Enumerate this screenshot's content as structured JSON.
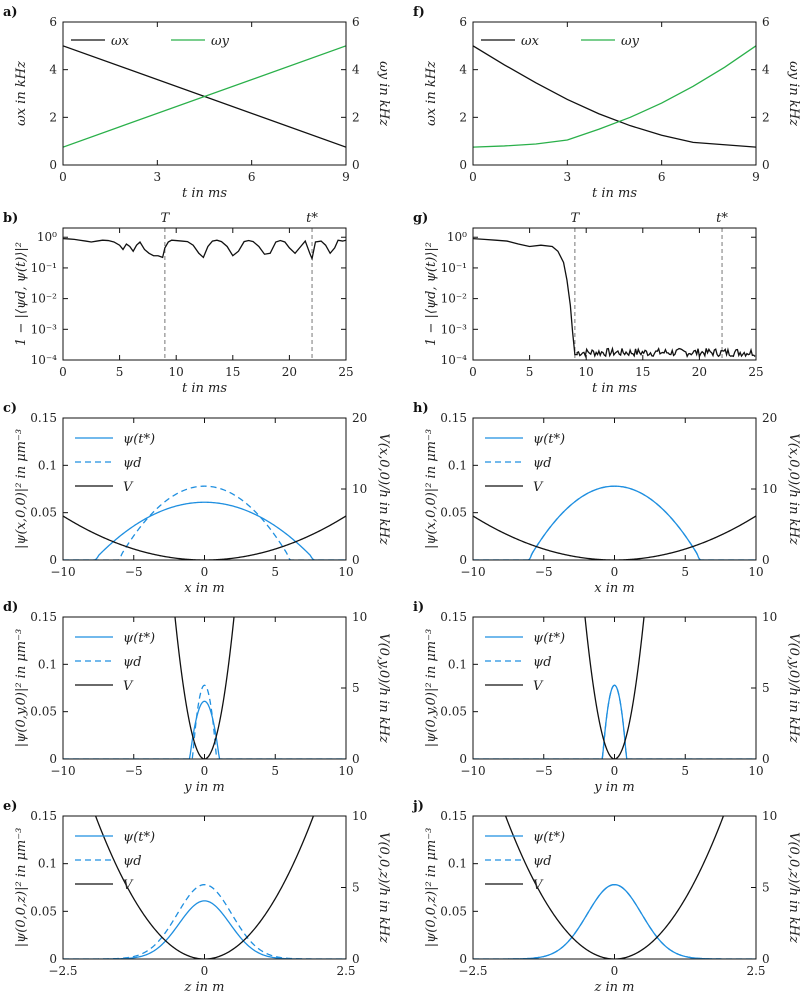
{
  "colors": {
    "black": "#111111",
    "green": "#2ab04a",
    "blue": "#1f8fe0",
    "gray": "#777777"
  },
  "chart_data": [
    {
      "panel": "a)",
      "type": "line",
      "xlabel": "t in ms",
      "ylabel": "ωx in kHz",
      "y2label": "ωy in kHz",
      "xlim": [
        0,
        9
      ],
      "ylim": [
        0,
        6
      ],
      "y2lim": [
        0,
        6
      ],
      "xticks": [
        "0",
        "3",
        "6",
        "9"
      ],
      "yticks": [
        "0",
        "2",
        "4",
        "6"
      ],
      "y2ticks": [
        "0",
        "2",
        "4",
        "6"
      ],
      "legend_position": "top",
      "series": [
        {
          "name": "ωx",
          "color": "black",
          "x": [
            0,
            9
          ],
          "y": [
            5,
            0.75
          ]
        },
        {
          "name": "ωy",
          "color": "green",
          "x": [
            0,
            9
          ],
          "y": [
            0.75,
            5
          ]
        }
      ]
    },
    {
      "panel": "f)",
      "type": "line",
      "xlabel": "t in ms",
      "ylabel": "ωx in kHz",
      "y2label": "ωy in kHz",
      "xlim": [
        0,
        9
      ],
      "ylim": [
        0,
        6
      ],
      "y2lim": [
        0,
        6
      ],
      "xticks": [
        "0",
        "3",
        "6",
        "9"
      ],
      "yticks": [
        "0",
        "2",
        "4",
        "6"
      ],
      "y2ticks": [
        "0",
        "2",
        "4",
        "6"
      ],
      "legend_position": "top",
      "series": [
        {
          "name": "ωx",
          "color": "black",
          "x": [
            0,
            1,
            2,
            3,
            4,
            5,
            6,
            7,
            8,
            9
          ],
          "y": [
            5,
            4.2,
            3.45,
            2.75,
            2.15,
            1.65,
            1.25,
            0.95,
            0.85,
            0.75
          ]
        },
        {
          "name": "ωy",
          "color": "green",
          "x": [
            0,
            1,
            2,
            3,
            4,
            5,
            6,
            7,
            8,
            9
          ],
          "y": [
            0.75,
            0.8,
            0.88,
            1.05,
            1.5,
            2,
            2.6,
            3.3,
            4.1,
            5
          ]
        }
      ]
    },
    {
      "panel": "b)",
      "type": "line",
      "scale": "log",
      "xlabel": "t in ms",
      "ylabel": "1 − |⟨ψd, ψ(t)⟩|²",
      "xlim": [
        0,
        25
      ],
      "ylim": [
        0.0001,
        2
      ],
      "xticks": [
        "0",
        "5",
        "10",
        "15",
        "20",
        "25"
      ],
      "yticks": [
        "10⁻⁴",
        "10⁻³",
        "10⁻²",
        "10⁻¹",
        "10⁰"
      ],
      "markers": [
        {
          "label": "T",
          "x": 9
        },
        {
          "label": "t*",
          "x": 22
        }
      ],
      "series": [
        {
          "name": "",
          "color": "black",
          "x": [
            0,
            0.5,
            1,
            1.5,
            2,
            2.5,
            3,
            3.5,
            4,
            4.5,
            5,
            5.3,
            5.6,
            5.9,
            6.2,
            6.5,
            6.8,
            7.2,
            7.6,
            8,
            8.4,
            8.8,
            9,
            9.3,
            9.6,
            10,
            10.5,
            11,
            11.5,
            12,
            12.4,
            12.8,
            13.2,
            13.6,
            14,
            14.5,
            15,
            15.5,
            16,
            16.4,
            16.8,
            17.3,
            17.8,
            18.3,
            18.8,
            19.2,
            19.6,
            20,
            20.5,
            21,
            21.4,
            21.8,
            22,
            22.3,
            22.8,
            23.2,
            23.6,
            24,
            24.3,
            24.7,
            25
          ],
          "y": [
            0.9,
            0.88,
            0.85,
            0.8,
            0.75,
            0.7,
            0.75,
            0.8,
            0.78,
            0.7,
            0.55,
            0.4,
            0.6,
            0.5,
            0.35,
            0.55,
            0.7,
            0.4,
            0.3,
            0.25,
            0.25,
            0.22,
            0.45,
            0.7,
            0.8,
            0.78,
            0.75,
            0.72,
            0.55,
            0.3,
            0.22,
            0.5,
            0.75,
            0.8,
            0.72,
            0.5,
            0.25,
            0.35,
            0.72,
            0.78,
            0.72,
            0.5,
            0.28,
            0.3,
            0.7,
            0.78,
            0.7,
            0.45,
            0.3,
            0.5,
            0.75,
            0.3,
            0.2,
            0.7,
            0.75,
            0.55,
            0.3,
            0.45,
            0.8,
            0.75,
            0.8
          ]
        }
      ]
    },
    {
      "panel": "g)",
      "type": "line",
      "scale": "log",
      "xlabel": "t in ms",
      "ylabel": "1 − |⟨ψd, ψ(t)⟩|²",
      "xlim": [
        0,
        25
      ],
      "ylim": [
        0.0001,
        2
      ],
      "xticks": [
        "0",
        "5",
        "10",
        "15",
        "20",
        "25"
      ],
      "yticks": [
        "10⁻⁴",
        "10⁻³",
        "10⁻²",
        "10⁻¹",
        "10⁰"
      ],
      "markers": [
        {
          "label": "T",
          "x": 9
        },
        {
          "label": "t*",
          "x": 22
        }
      ],
      "series": [
        {
          "name": "",
          "color": "black",
          "x": [
            0,
            1,
            2,
            3,
            4,
            5,
            6,
            7,
            7.5,
            8,
            8.3,
            8.6,
            8.8,
            9,
            9.2
          ],
          "y": [
            0.9,
            0.85,
            0.8,
            0.75,
            0.6,
            0.5,
            0.55,
            0.5,
            0.35,
            0.15,
            0.04,
            0.006,
            0.0008,
            0.00015,
            0.00015
          ],
          "noise_after_x": 9.2,
          "noise_min": 0.00013,
          "noise_max": 0.00024
        }
      ]
    },
    {
      "panel": "c)",
      "type": "line",
      "xlabel": "x in m",
      "ylabel": "|ψ(x,0,0)|² in μm⁻³",
      "y2label": "V(x,0,0)/h in kHz",
      "xlim": [
        -10,
        10
      ],
      "ylim": [
        0,
        0.15
      ],
      "y2lim": [
        0,
        20
      ],
      "xticks": [
        "−10",
        "−5",
        "0",
        "5",
        "10"
      ],
      "yticks": [
        "0",
        "0.05",
        "0.1",
        "0.15"
      ],
      "y2ticks": [
        "0",
        "10",
        "20"
      ],
      "series": [
        {
          "name": "ψ(t*)",
          "color": "blue",
          "style": "solid",
          "model": "tf",
          "center": 0,
          "radius": 7.8,
          "peak": 0.061,
          "ramp": 0.08
        },
        {
          "name": "ψd",
          "color": "blue",
          "style": "dashed",
          "model": "tf",
          "center": 0,
          "radius": 6.1,
          "peak": 0.078,
          "ramp": 0.08
        },
        {
          "name": "V",
          "color": "black",
          "style": "solid",
          "axis": "right",
          "model": "parabola",
          "k": 0.062
        }
      ]
    },
    {
      "panel": "h)",
      "type": "line",
      "xlabel": "x in m",
      "ylabel": "|ψ(x,0,0)|² in μm⁻³",
      "y2label": "V(x,0,0)/h in kHz",
      "xlim": [
        -10,
        10
      ],
      "ylim": [
        0,
        0.15
      ],
      "y2lim": [
        0,
        20
      ],
      "xticks": [
        "−10",
        "−5",
        "0",
        "5",
        "10"
      ],
      "yticks": [
        "0",
        "0.05",
        "0.1",
        "0.15"
      ],
      "y2ticks": [
        "0",
        "10",
        "20"
      ],
      "series": [
        {
          "name": "ψ(t*)",
          "color": "blue",
          "style": "solid",
          "model": "tf",
          "center": 0,
          "radius": 6.1,
          "peak": 0.078,
          "ramp": 0.08
        },
        {
          "name": "ψd",
          "color": "blue",
          "style": "dashed",
          "model": "tf",
          "center": 0,
          "radius": 6.1,
          "peak": 0.078,
          "ramp": 0.08
        },
        {
          "name": "V",
          "color": "black",
          "style": "solid",
          "axis": "right",
          "model": "parabola",
          "k": 0.062
        }
      ]
    },
    {
      "panel": "d)",
      "type": "line",
      "xlabel": "y in m",
      "ylabel": "|ψ(0,y,0)|² in μm⁻³",
      "y2label": "V(0,y,0)/h in kHz",
      "xlim": [
        -10,
        10
      ],
      "ylim": [
        0,
        0.15
      ],
      "y2lim": [
        0,
        10
      ],
      "xticks": [
        "−10",
        "−5",
        "0",
        "5",
        "10"
      ],
      "yticks": [
        "0",
        "0.05",
        "0.1",
        "0.15"
      ],
      "y2ticks": [
        "0",
        "5",
        "10"
      ],
      "series": [
        {
          "name": "ψ(t*)",
          "color": "blue",
          "style": "solid",
          "model": "tf",
          "center": 0,
          "radius": 1.05,
          "peak": 0.061,
          "ramp": 0.08
        },
        {
          "name": "ψd",
          "color": "blue",
          "style": "dashed",
          "model": "tf",
          "center": 0,
          "radius": 0.85,
          "peak": 0.078,
          "ramp": 0.08
        },
        {
          "name": "V",
          "color": "black",
          "style": "solid",
          "axis": "right",
          "model": "parabola",
          "k": 2.3
        }
      ]
    },
    {
      "panel": "i)",
      "type": "line",
      "xlabel": "y in m",
      "ylabel": "|ψ(0,y,0)|² in μm⁻³",
      "y2label": "V(0,y,0)/h in kHz",
      "xlim": [
        -10,
        10
      ],
      "ylim": [
        0,
        0.15
      ],
      "y2lim": [
        0,
        10
      ],
      "xticks": [
        "−10",
        "−5",
        "0",
        "5",
        "10"
      ],
      "yticks": [
        "0",
        "0.05",
        "0.1",
        "0.15"
      ],
      "y2ticks": [
        "0",
        "5",
        "10"
      ],
      "series": [
        {
          "name": "ψ(t*)",
          "color": "blue",
          "style": "solid",
          "model": "tf",
          "center": 0,
          "radius": 0.85,
          "peak": 0.078,
          "ramp": 0.08
        },
        {
          "name": "ψd",
          "color": "blue",
          "style": "dashed",
          "model": "tf",
          "center": 0,
          "radius": 0.85,
          "peak": 0.078,
          "ramp": 0.08
        },
        {
          "name": "V",
          "color": "black",
          "style": "solid",
          "axis": "right",
          "model": "parabola",
          "k": 2.3
        }
      ]
    },
    {
      "panel": "e)",
      "type": "line",
      "xlabel": "z in m",
      "ylabel": "|ψ(0,0,z)|² in μm⁻³",
      "y2label": "V(0,0,z)/h in kHz",
      "xlim": [
        -2.5,
        2.5
      ],
      "ylim": [
        0,
        0.15
      ],
      "y2lim": [
        0,
        10
      ],
      "xticks": [
        "−2.5",
        "0",
        "2.5"
      ],
      "yticks": [
        "0",
        "0.05",
        "0.1",
        "0.15"
      ],
      "y2ticks": [
        "0",
        "5",
        "10"
      ],
      "series": [
        {
          "name": "ψ(t*)",
          "color": "blue",
          "style": "solid",
          "model": "gauss",
          "center": 0,
          "peak": 0.061,
          "sigma": 0.45
        },
        {
          "name": "ψd",
          "color": "blue",
          "style": "dashed",
          "model": "gauss",
          "center": 0,
          "peak": 0.078,
          "sigma": 0.48
        },
        {
          "name": "V",
          "color": "black",
          "style": "solid",
          "axis": "right",
          "model": "parabola",
          "k": 2.7
        }
      ]
    },
    {
      "panel": "j)",
      "type": "line",
      "xlabel": "z in m",
      "ylabel": "|ψ(0,0,z)|² in μm⁻³",
      "y2label": "V(0,0,z)/h in kHz",
      "xlim": [
        -2.5,
        2.5
      ],
      "ylim": [
        0,
        0.15
      ],
      "y2lim": [
        0,
        10
      ],
      "xticks": [
        "−2.5",
        "0",
        "2.5"
      ],
      "yticks": [
        "0",
        "0.05",
        "0.1",
        "0.15"
      ],
      "y2ticks": [
        "0",
        "5",
        "10"
      ],
      "series": [
        {
          "name": "ψ(t*)",
          "color": "blue",
          "style": "solid",
          "model": "gauss",
          "center": 0,
          "peak": 0.078,
          "sigma": 0.48
        },
        {
          "name": "ψd",
          "color": "blue",
          "style": "dashed",
          "model": "gauss",
          "center": 0,
          "peak": 0.078,
          "sigma": 0.48
        },
        {
          "name": "V",
          "color": "black",
          "style": "solid",
          "axis": "right",
          "model": "parabola",
          "k": 2.7
        }
      ]
    }
  ]
}
